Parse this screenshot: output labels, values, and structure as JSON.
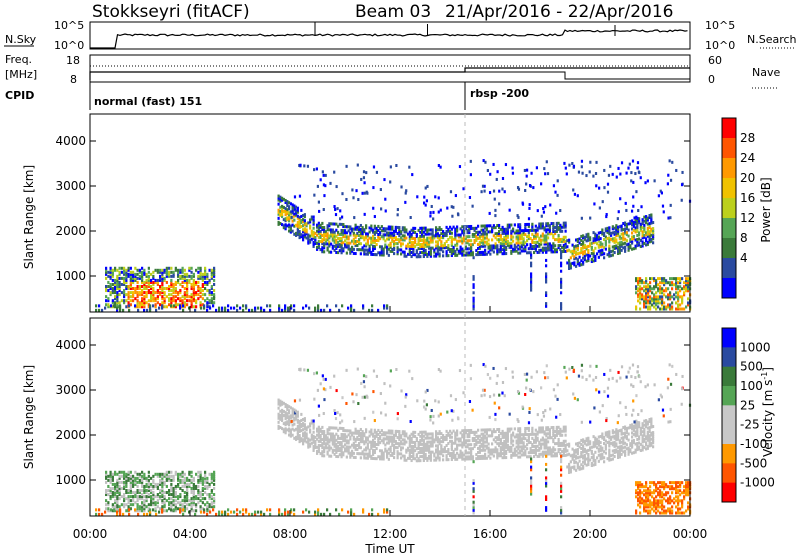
{
  "header": {
    "station": "Stokkseyri (fitACF)",
    "beam": "Beam 03",
    "dates": "21/Apr/2016 - 22/Apr/2016"
  },
  "strips": {
    "nsky_label": "N.Sky",
    "nsky_ticks_left": [
      "10^5",
      "10^0"
    ],
    "nsearch_label": "N.Search",
    "nsearch_ticks_right": [
      "10^5",
      "10^0"
    ],
    "freq_label": "Freq.",
    "freq_unit": "[MHz]",
    "freq_ticks": [
      "18",
      "8"
    ],
    "nave_label": "Nave",
    "nave_ticks": [
      "60",
      "0"
    ],
    "cpid_label": "CPID",
    "cpid_segments": [
      {
        "label": "normal (fast) 151",
        "start_hour": 0
      },
      {
        "label": "rbsp -200",
        "start_hour": 15
      }
    ]
  },
  "colors": {
    "power_scale": [
      "#0000ff",
      "#2a4aa0",
      "#3a7a3a",
      "#55a555",
      "#bcd01c",
      "#f0c200",
      "#ff9900",
      "#ff5500",
      "#ff0000"
    ],
    "velocity_scale": [
      "#0000ff",
      "#2a4aa0",
      "#3a7a3a",
      "#55a555",
      "#c8c8c8",
      "#c8c8c8",
      "#ff9900",
      "#ff5500",
      "#ff0000"
    ],
    "ground_scatter": "#c0c0c0",
    "frame": "#000000"
  },
  "chart_data": [
    {
      "type": "heatmap",
      "name": "power",
      "ylabel": "Slant Range [km]",
      "xlabel": "Time UT",
      "ylim": [
        200,
        4600
      ],
      "y_ticks": [
        "4000",
        "3000",
        "2000",
        "1000"
      ],
      "x_ticks": [
        "00:00",
        "04:00",
        "08:00",
        "12:00",
        "16:00",
        "20:00",
        "00:00"
      ],
      "xlim_hours": [
        0,
        24
      ],
      "colorbar_label": "Power [dB]",
      "colorbar_ticks": [
        "28",
        "24",
        "20",
        "16",
        "12",
        "8",
        "4"
      ],
      "features": [
        {
          "t_start": 0.5,
          "t_end": 5.0,
          "range_low": 400,
          "range_high": 1200,
          "level": "strong"
        },
        {
          "t_start": 7.5,
          "t_end": 22.0,
          "range_low": 1300,
          "range_high": 2700,
          "level": "medium"
        }
      ]
    },
    {
      "type": "heatmap",
      "name": "velocity",
      "ylabel": "Slant Range [km]",
      "xlabel": "Time UT",
      "ylim": [
        200,
        4600
      ],
      "y_ticks": [
        "4000",
        "3000",
        "2000",
        "1000"
      ],
      "x_ticks": [
        "00:00",
        "04:00",
        "08:00",
        "12:00",
        "16:00",
        "20:00",
        "00:00"
      ],
      "xlim_hours": [
        0,
        24
      ],
      "colorbar_label": "Velocity [m s^-1]",
      "colorbar_ticks": [
        "1000",
        "500",
        "100",
        "25",
        "-25",
        "-100",
        "-500",
        "-1000"
      ]
    }
  ],
  "axes": {
    "xlabel": "Time UT",
    "ylabel": "Slant Range [km]"
  }
}
